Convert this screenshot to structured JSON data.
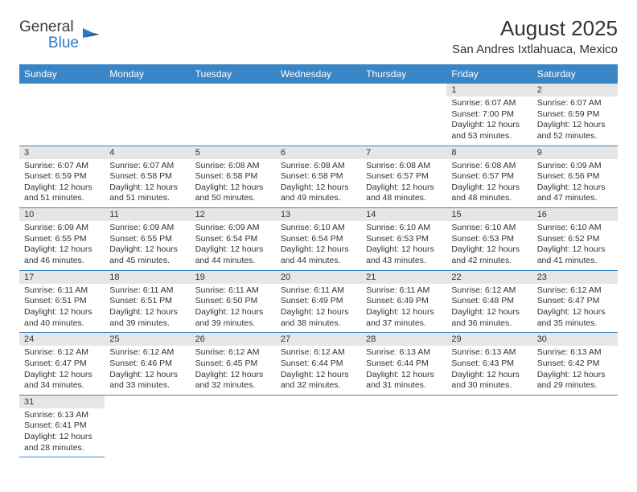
{
  "logo": {
    "text1": "General",
    "text2": "Blue",
    "color_gray": "#3a3a3a",
    "color_blue": "#2a7bbf"
  },
  "header": {
    "month_title": "August 2025",
    "location": "San Andres Ixtlahuaca, Mexico"
  },
  "style": {
    "header_bg": "#3a85c6",
    "header_text": "#ffffff",
    "daynum_bg": "#e6e6e6",
    "border_color": "#3a85c6",
    "text_color": "#333333",
    "page_bg": "#ffffff",
    "title_fontsize": 26,
    "location_fontsize": 15,
    "dayheader_fontsize": 12,
    "cell_fontsize": 10.5
  },
  "day_headers": [
    "Sunday",
    "Monday",
    "Tuesday",
    "Wednesday",
    "Thursday",
    "Friday",
    "Saturday"
  ],
  "weeks": [
    [
      {
        "empty": true
      },
      {
        "empty": true
      },
      {
        "empty": true
      },
      {
        "empty": true
      },
      {
        "empty": true
      },
      {
        "day": "1",
        "sunrise": "Sunrise: 6:07 AM",
        "sunset": "Sunset: 7:00 PM",
        "daylight1": "Daylight: 12 hours",
        "daylight2": "and 53 minutes."
      },
      {
        "day": "2",
        "sunrise": "Sunrise: 6:07 AM",
        "sunset": "Sunset: 6:59 PM",
        "daylight1": "Daylight: 12 hours",
        "daylight2": "and 52 minutes."
      }
    ],
    [
      {
        "day": "3",
        "sunrise": "Sunrise: 6:07 AM",
        "sunset": "Sunset: 6:59 PM",
        "daylight1": "Daylight: 12 hours",
        "daylight2": "and 51 minutes."
      },
      {
        "day": "4",
        "sunrise": "Sunrise: 6:07 AM",
        "sunset": "Sunset: 6:58 PM",
        "daylight1": "Daylight: 12 hours",
        "daylight2": "and 51 minutes."
      },
      {
        "day": "5",
        "sunrise": "Sunrise: 6:08 AM",
        "sunset": "Sunset: 6:58 PM",
        "daylight1": "Daylight: 12 hours",
        "daylight2": "and 50 minutes."
      },
      {
        "day": "6",
        "sunrise": "Sunrise: 6:08 AM",
        "sunset": "Sunset: 6:58 PM",
        "daylight1": "Daylight: 12 hours",
        "daylight2": "and 49 minutes."
      },
      {
        "day": "7",
        "sunrise": "Sunrise: 6:08 AM",
        "sunset": "Sunset: 6:57 PM",
        "daylight1": "Daylight: 12 hours",
        "daylight2": "and 48 minutes."
      },
      {
        "day": "8",
        "sunrise": "Sunrise: 6:08 AM",
        "sunset": "Sunset: 6:57 PM",
        "daylight1": "Daylight: 12 hours",
        "daylight2": "and 48 minutes."
      },
      {
        "day": "9",
        "sunrise": "Sunrise: 6:09 AM",
        "sunset": "Sunset: 6:56 PM",
        "daylight1": "Daylight: 12 hours",
        "daylight2": "and 47 minutes."
      }
    ],
    [
      {
        "day": "10",
        "sunrise": "Sunrise: 6:09 AM",
        "sunset": "Sunset: 6:55 PM",
        "daylight1": "Daylight: 12 hours",
        "daylight2": "and 46 minutes."
      },
      {
        "day": "11",
        "sunrise": "Sunrise: 6:09 AM",
        "sunset": "Sunset: 6:55 PM",
        "daylight1": "Daylight: 12 hours",
        "daylight2": "and 45 minutes."
      },
      {
        "day": "12",
        "sunrise": "Sunrise: 6:09 AM",
        "sunset": "Sunset: 6:54 PM",
        "daylight1": "Daylight: 12 hours",
        "daylight2": "and 44 minutes."
      },
      {
        "day": "13",
        "sunrise": "Sunrise: 6:10 AM",
        "sunset": "Sunset: 6:54 PM",
        "daylight1": "Daylight: 12 hours",
        "daylight2": "and 44 minutes."
      },
      {
        "day": "14",
        "sunrise": "Sunrise: 6:10 AM",
        "sunset": "Sunset: 6:53 PM",
        "daylight1": "Daylight: 12 hours",
        "daylight2": "and 43 minutes."
      },
      {
        "day": "15",
        "sunrise": "Sunrise: 6:10 AM",
        "sunset": "Sunset: 6:53 PM",
        "daylight1": "Daylight: 12 hours",
        "daylight2": "and 42 minutes."
      },
      {
        "day": "16",
        "sunrise": "Sunrise: 6:10 AM",
        "sunset": "Sunset: 6:52 PM",
        "daylight1": "Daylight: 12 hours",
        "daylight2": "and 41 minutes."
      }
    ],
    [
      {
        "day": "17",
        "sunrise": "Sunrise: 6:11 AM",
        "sunset": "Sunset: 6:51 PM",
        "daylight1": "Daylight: 12 hours",
        "daylight2": "and 40 minutes."
      },
      {
        "day": "18",
        "sunrise": "Sunrise: 6:11 AM",
        "sunset": "Sunset: 6:51 PM",
        "daylight1": "Daylight: 12 hours",
        "daylight2": "and 39 minutes."
      },
      {
        "day": "19",
        "sunrise": "Sunrise: 6:11 AM",
        "sunset": "Sunset: 6:50 PM",
        "daylight1": "Daylight: 12 hours",
        "daylight2": "and 39 minutes."
      },
      {
        "day": "20",
        "sunrise": "Sunrise: 6:11 AM",
        "sunset": "Sunset: 6:49 PM",
        "daylight1": "Daylight: 12 hours",
        "daylight2": "and 38 minutes."
      },
      {
        "day": "21",
        "sunrise": "Sunrise: 6:11 AM",
        "sunset": "Sunset: 6:49 PM",
        "daylight1": "Daylight: 12 hours",
        "daylight2": "and 37 minutes."
      },
      {
        "day": "22",
        "sunrise": "Sunrise: 6:12 AM",
        "sunset": "Sunset: 6:48 PM",
        "daylight1": "Daylight: 12 hours",
        "daylight2": "and 36 minutes."
      },
      {
        "day": "23",
        "sunrise": "Sunrise: 6:12 AM",
        "sunset": "Sunset: 6:47 PM",
        "daylight1": "Daylight: 12 hours",
        "daylight2": "and 35 minutes."
      }
    ],
    [
      {
        "day": "24",
        "sunrise": "Sunrise: 6:12 AM",
        "sunset": "Sunset: 6:47 PM",
        "daylight1": "Daylight: 12 hours",
        "daylight2": "and 34 minutes."
      },
      {
        "day": "25",
        "sunrise": "Sunrise: 6:12 AM",
        "sunset": "Sunset: 6:46 PM",
        "daylight1": "Daylight: 12 hours",
        "daylight2": "and 33 minutes."
      },
      {
        "day": "26",
        "sunrise": "Sunrise: 6:12 AM",
        "sunset": "Sunset: 6:45 PM",
        "daylight1": "Daylight: 12 hours",
        "daylight2": "and 32 minutes."
      },
      {
        "day": "27",
        "sunrise": "Sunrise: 6:12 AM",
        "sunset": "Sunset: 6:44 PM",
        "daylight1": "Daylight: 12 hours",
        "daylight2": "and 32 minutes."
      },
      {
        "day": "28",
        "sunrise": "Sunrise: 6:13 AM",
        "sunset": "Sunset: 6:44 PM",
        "daylight1": "Daylight: 12 hours",
        "daylight2": "and 31 minutes."
      },
      {
        "day": "29",
        "sunrise": "Sunrise: 6:13 AM",
        "sunset": "Sunset: 6:43 PM",
        "daylight1": "Daylight: 12 hours",
        "daylight2": "and 30 minutes."
      },
      {
        "day": "30",
        "sunrise": "Sunrise: 6:13 AM",
        "sunset": "Sunset: 6:42 PM",
        "daylight1": "Daylight: 12 hours",
        "daylight2": "and 29 minutes."
      }
    ],
    [
      {
        "day": "31",
        "sunrise": "Sunrise: 6:13 AM",
        "sunset": "Sunset: 6:41 PM",
        "daylight1": "Daylight: 12 hours",
        "daylight2": "and 28 minutes."
      },
      {
        "empty": true
      },
      {
        "empty": true
      },
      {
        "empty": true
      },
      {
        "empty": true
      },
      {
        "empty": true
      },
      {
        "empty": true
      }
    ]
  ]
}
